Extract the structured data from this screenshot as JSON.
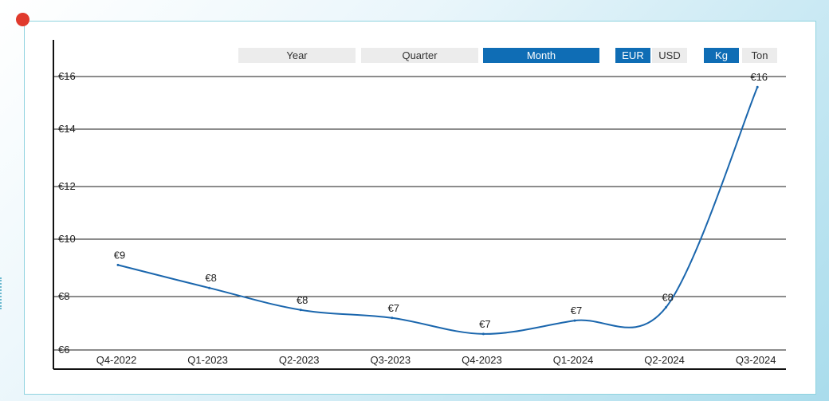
{
  "controls": {
    "period": [
      "Year",
      "Quarter",
      "Month"
    ],
    "period_active": "Month",
    "currency": [
      "EUR",
      "USD"
    ],
    "currency_active": "EUR",
    "unit": [
      "Kg",
      "Ton"
    ],
    "unit_active": "Kg"
  },
  "colors": {
    "line": "#1a66ad",
    "accent": "#0f6db5",
    "marker": "#e03a2d"
  },
  "chart_data": {
    "type": "line",
    "categories": [
      "Q4-2022",
      "Q1-2023",
      "Q2-2023",
      "Q3-2023",
      "Q4-2023",
      "Q1-2024",
      "Q2-2024",
      "Q3-2024"
    ],
    "values": [
      9.1,
      8.3,
      7.5,
      7.2,
      6.6,
      7.1,
      7.6,
      15.6
    ],
    "data_labels": [
      "€9",
      "€8",
      "€8",
      "€7",
      "€7",
      "€7",
      "€8",
      "€16"
    ],
    "y_ticks": [
      6,
      8,
      10,
      12,
      14,
      16
    ],
    "y_tick_labels": [
      "€6",
      "€8",
      "€10",
      "€12",
      "€14",
      "€16"
    ],
    "ylim": [
      6,
      16
    ],
    "grid": true,
    "title": "",
    "xlabel": "",
    "ylabel": ""
  }
}
